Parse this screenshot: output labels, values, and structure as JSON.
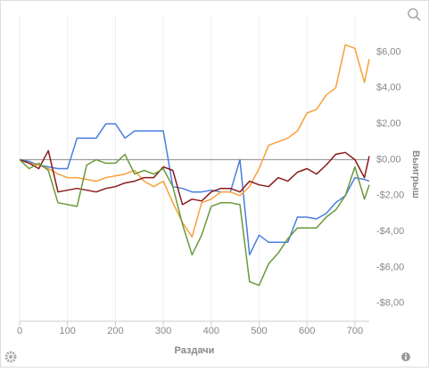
{
  "chart_data": {
    "type": "line",
    "x_label": "Раздачи",
    "y_label": "Выигрыш",
    "x": [
      0,
      20,
      40,
      60,
      80,
      100,
      120,
      140,
      160,
      180,
      200,
      220,
      240,
      260,
      280,
      300,
      320,
      340,
      360,
      380,
      400,
      420,
      440,
      460,
      480,
      500,
      520,
      540,
      560,
      580,
      600,
      620,
      640,
      660,
      680,
      700,
      720,
      730
    ],
    "series": [
      {
        "color": "#4a7de0",
        "values": [
          0,
          -0.1,
          -0.3,
          -0.4,
          -0.5,
          -0.5,
          1.2,
          1.2,
          1.2,
          2.0,
          2.0,
          1.2,
          1.6,
          1.6,
          1.6,
          1.6,
          -1.5,
          -1.6,
          -1.8,
          -1.8,
          -1.7,
          -1.8,
          -1.8,
          0,
          -5.3,
          -4.2,
          -4.6,
          -4.6,
          -4.6,
          -3.2,
          -3.2,
          -3.3,
          -3.0,
          -2.4,
          -2.0,
          -1.0,
          -1.1,
          -1.2
        ]
      },
      {
        "color": "#f7a03c",
        "values": [
          0,
          -0.2,
          -0.3,
          -0.5,
          -0.8,
          -1.0,
          -1.0,
          -1.1,
          -1.2,
          -1.0,
          -0.9,
          -0.8,
          -0.6,
          -1.2,
          -1.5,
          -1.2,
          -2.4,
          -3.5,
          -4.3,
          -2.4,
          -2.2,
          -1.8,
          -1.8,
          -2.0,
          -1.5,
          -0.5,
          0.8,
          1.0,
          1.2,
          1.6,
          2.6,
          2.8,
          3.6,
          4.0,
          6.4,
          6.2,
          4.3,
          5.6
        ]
      },
      {
        "color": "#8b1a1a",
        "values": [
          0,
          -0.2,
          -0.5,
          0.5,
          -1.8,
          -1.7,
          -1.6,
          -1.7,
          -1.8,
          -1.6,
          -1.5,
          -1.3,
          -1.2,
          -1.0,
          -1.0,
          -0.4,
          -0.6,
          -2.5,
          -2.2,
          -2.3,
          -1.8,
          -1.6,
          -1.6,
          -1.8,
          -1.2,
          -1.4,
          -1.5,
          -1.0,
          -1.2,
          -0.7,
          -0.5,
          -0.8,
          -0.3,
          0.3,
          0.4,
          0,
          -1.0,
          0.2
        ]
      },
      {
        "color": "#6a9a3a",
        "values": [
          0,
          -0.5,
          -0.2,
          -0.6,
          -2.4,
          -2.5,
          -2.6,
          -0.3,
          0,
          -0.2,
          -0.2,
          0.3,
          -0.8,
          -0.6,
          -0.8,
          -0.5,
          -1.5,
          -3.6,
          -5.3,
          -4.2,
          -2.6,
          -2.4,
          -2.4,
          -2.5,
          -6.8,
          -7.0,
          -5.8,
          -5.2,
          -4.4,
          -3.8,
          -3.8,
          -3.8,
          -3.2,
          -2.8,
          -2.0,
          -0.4,
          -2.2,
          -1.4
        ]
      }
    ],
    "xlim": [
      0,
      730
    ],
    "xticks": [
      0,
      100,
      200,
      300,
      400,
      500,
      600,
      700
    ],
    "ylim": [
      -9,
      8
    ],
    "yticks": [
      {
        "value": 6,
        "label": "$6,00"
      },
      {
        "value": 4,
        "label": "$4,00"
      },
      {
        "value": 2,
        "label": "$2,00"
      },
      {
        "value": 0,
        "label": "$0,00"
      },
      {
        "value": -2,
        "label": "-$2,00"
      },
      {
        "value": -4,
        "label": "-$4,00"
      },
      {
        "value": -6,
        "label": "-$6,00"
      },
      {
        "value": -8,
        "label": "-$8,00"
      }
    ],
    "grid": "x"
  }
}
